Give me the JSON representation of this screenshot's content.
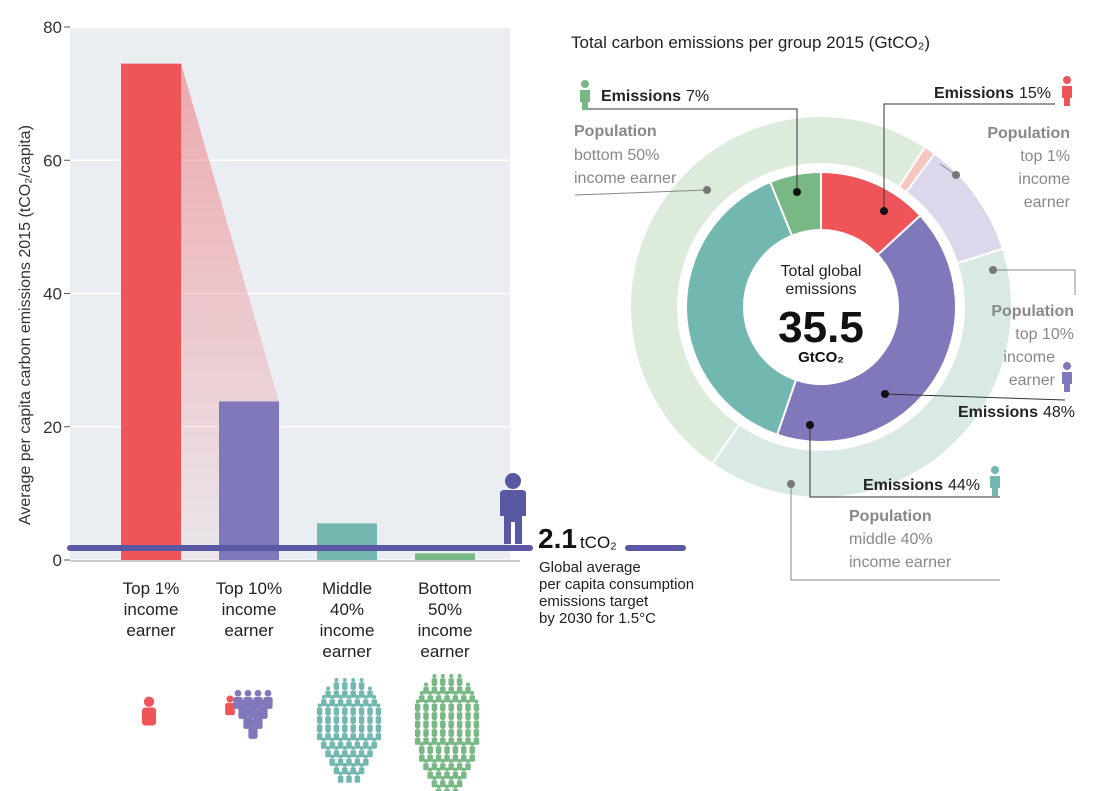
{
  "colors": {
    "top1": "#ef5459",
    "top10": "#7f78ba",
    "middle40": "#72b8b1",
    "bottom50": "#78b884",
    "top1_pop": "#f6c6c0",
    "top10_pop": "#dcd8ec",
    "middle40_pop": "#d8e9e6",
    "bottom50_pop": "#dcebdc",
    "plot_bg": "#eaeef2",
    "target_line": "#5a57a3"
  },
  "bar_chart": {
    "y_label": "Average per capita carbon emissions 2015 (tCO₂/capita)",
    "y_ticks": [
      "0",
      "20",
      "40",
      "60",
      "80"
    ],
    "target": {
      "value_text": "2.1",
      "unit_text": "tCO₂",
      "lines": [
        "Global average",
        "per capita consumption",
        "emissions target",
        "by 2030 for 1.5°C"
      ]
    }
  },
  "groups": [
    {
      "key": "top1",
      "label_lines": [
        "Top 1%",
        "income",
        "earner"
      ],
      "icon": "single-person-icon"
    },
    {
      "key": "top10",
      "label_lines": [
        "Top 10%",
        "income",
        "earner"
      ],
      "icon": "small-crowd-icon"
    },
    {
      "key": "middle40",
      "label_lines": [
        "Middle",
        "40%",
        "income",
        "earner"
      ],
      "icon": "large-crowd-icon"
    },
    {
      "key": "bottom50",
      "label_lines": [
        "Bottom",
        "50%",
        "income",
        "earner"
      ],
      "icon": "largest-crowd-icon"
    }
  ],
  "donut": {
    "title": "Total carbon emissions per group 2015 (GtCO₂)",
    "center_label_lines": [
      "Total global",
      "emissions"
    ],
    "center_value": "35.5",
    "center_unit": "GtCO₂",
    "emissions_word": "Emissions",
    "population_word": "Population",
    "callouts": {
      "bottom50_emis": "7%",
      "top1_emis": "15%",
      "top10_emis": "48%",
      "middle40_emis": "44%",
      "bottom50_pop_lines": [
        "bottom 50%",
        "income earner"
      ],
      "top1_pop_lines": [
        "top 1%",
        "income",
        "earner"
      ],
      "top10_pop_lines": [
        "top 10%",
        "income",
        "earner"
      ],
      "middle40_pop_lines": [
        "middle 40%",
        "income earner"
      ]
    }
  },
  "chart_data": [
    {
      "type": "bar",
      "title": "",
      "ylabel": "Average per capita carbon emissions 2015 (tCO₂/capita)",
      "xlabel": "",
      "categories": [
        "Top 1% income earner",
        "Top 10% income earner",
        "Middle 40% income earner",
        "Bottom 50% income earner"
      ],
      "values": [
        74.5,
        23.8,
        5.5,
        1.0
      ],
      "ylim": [
        0,
        80
      ],
      "yticks": [
        0,
        20,
        40,
        60,
        80
      ],
      "reference_line": {
        "value": 2.1,
        "label": "2.1 tCO₂ Global average per capita consumption emissions target by 2030 for 1.5°C"
      },
      "grid": true
    },
    {
      "type": "pie",
      "title": "Total carbon emissions per group 2015 (GtCO₂)",
      "center_total": 35.5,
      "center_unit": "GtCO₂",
      "series": [
        {
          "name": "Emissions",
          "categories": [
            "Top 1% income earner",
            "Top 10% income earner",
            "Middle 40% income earner",
            "Bottom 50% income earner"
          ],
          "values": [
            15,
            48,
            44,
            7
          ]
        },
        {
          "name": "Population",
          "categories": [
            "Top 1% income earner",
            "Top 10% income earner",
            "Middle 40% income earner",
            "Bottom 50% income earner"
          ],
          "values": [
            1,
            10,
            40,
            50
          ]
        }
      ]
    }
  ]
}
